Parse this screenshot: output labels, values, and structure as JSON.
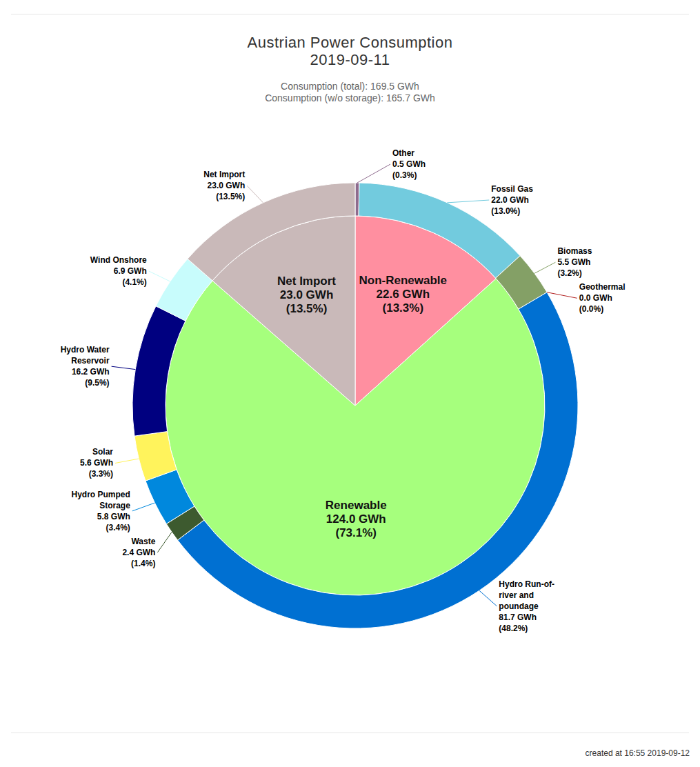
{
  "chart_data": {
    "type": "pie",
    "title": "Austrian Power Consumption",
    "subtitle": "2019-09-11",
    "annotations": [
      "Consumption (total): 169.5 GWh",
      "Consumption (w/o storage): 165.7 GWh",
      "created at 16:55 2019-09-12"
    ],
    "data_labels": true,
    "series": [
      {
        "categories": [
          "Non-Renewable",
          "Renewable",
          "Net Import"
        ],
        "values": [
          22.6,
          124.0,
          23.0
        ],
        "value_labels": [
          "22.6 GWh",
          "124.0 GWh",
          "23.0 GWh"
        ],
        "percentages": [
          13.3,
          73.1,
          13.5
        ],
        "percentage_labels": [
          "(13.3%)",
          "(73.1%)",
          "(13.5%)"
        ],
        "colors": [
          "#ff8fa0",
          "#a6ff7d",
          "#c9b9b9"
        ]
      },
      {
        "categories": [
          "Other",
          "Fossil Gas",
          "Biomass",
          "Geothermal",
          "Hydro Run-of-river and poundage",
          "Waste",
          "Hydro Pumped Storage",
          "Solar",
          "Hydro Water Reservoir",
          "Wind Onshore",
          "Net Import"
        ],
        "values": [
          0.5,
          22.0,
          5.5,
          0.0,
          81.7,
          2.4,
          5.8,
          5.6,
          16.2,
          6.9,
          23.0
        ],
        "value_labels": [
          "0.5 GWh",
          "22.0 GWh",
          "5.5 GWh",
          "0.0 GWh",
          "81.7 GWh",
          "2.4 GWh",
          "5.8 GWh",
          "5.6 GWh",
          "16.2 GWh",
          "6.9 GWh",
          "23.0 GWh"
        ],
        "percentages": [
          0.3,
          13.0,
          3.2,
          0.0,
          48.2,
          1.4,
          3.4,
          3.3,
          9.5,
          4.1,
          13.5
        ],
        "percentage_labels": [
          "(0.3%)",
          "(13.0%)",
          "(3.2%)",
          "(0.0%)",
          "(48.2%)",
          "(1.4%)",
          "(3.4%)",
          "(3.3%)",
          "(9.5%)",
          "(4.1%)",
          "(13.5%)"
        ],
        "colors": [
          "#8e6b8e",
          "#72cbde",
          "#84a066",
          "#b22222",
          "#0070d2",
          "#3d5a2f",
          "#0088dd",
          "#fff35c",
          "#000080",
          "#c8fcfc",
          "#c9b9b9"
        ]
      }
    ]
  }
}
